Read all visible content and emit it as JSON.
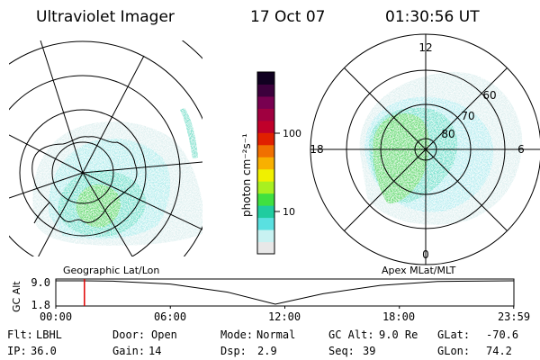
{
  "header": {
    "instrument": "Ultraviolet Imager",
    "date": "17 Oct 07",
    "time": "01:30:56 UT"
  },
  "left_panel": {
    "caption": "Geographic Lat/Lon"
  },
  "right_panel": {
    "caption": "Apex MLat/MLT",
    "mlt_labels": [
      "12",
      "18",
      "6",
      "0"
    ],
    "lat_labels": [
      "60",
      "70",
      "80"
    ]
  },
  "colorbar": {
    "unit_label": "photon cm⁻²s⁻¹",
    "tick_labels": [
      "100",
      "10"
    ],
    "colors": [
      "#e8e8e8",
      "#c8f2f2",
      "#5ae0e0",
      "#20cca0",
      "#40e040",
      "#a8f020",
      "#f0f000",
      "#f8b000",
      "#f07000",
      "#e02000",
      "#c0002a",
      "#a00040",
      "#780050",
      "#3c003c",
      "#100020"
    ]
  },
  "timeline": {
    "ylabel": "GC Alt",
    "y_ticks": [
      "9.0",
      "1.8"
    ],
    "x_ticks": [
      "00:00",
      "06:00",
      "12:00",
      "18:00",
      "23:59"
    ],
    "current_time_hours": 1.5,
    "marker_color": "#e00000"
  },
  "footer": {
    "rows": [
      [
        {
          "label": "Flt:",
          "value": "LBHL"
        },
        {
          "label": "Door:",
          "value": "Open"
        },
        {
          "label": "Mode:",
          "value": "Normal"
        },
        {
          "label": "GC Alt:",
          "value": "9.0 Re"
        },
        {
          "label": "GLat:",
          "value": "-70.6"
        }
      ],
      [
        {
          "label": "IP:",
          "value": "36.0"
        },
        {
          "label": "Gain:",
          "value": "14"
        },
        {
          "label": "Dsp:",
          "value": "2.9"
        },
        {
          "label": "Seq:",
          "value": "39"
        },
        {
          "label": "GLon:",
          "value": "74.2"
        }
      ]
    ]
  },
  "chart_data": {
    "type": "line",
    "xlabel": "",
    "ylabel": "GC Alt",
    "x": [
      0,
      1.5,
      3,
      6,
      9,
      11.5,
      14,
      17,
      20,
      23.99
    ],
    "y": [
      9.0,
      9.0,
      8.9,
      8.0,
      5.5,
      1.8,
      5.0,
      7.6,
      8.8,
      9.0
    ],
    "xlim": [
      0,
      24
    ],
    "ylim": [
      1.8,
      9.0
    ]
  }
}
